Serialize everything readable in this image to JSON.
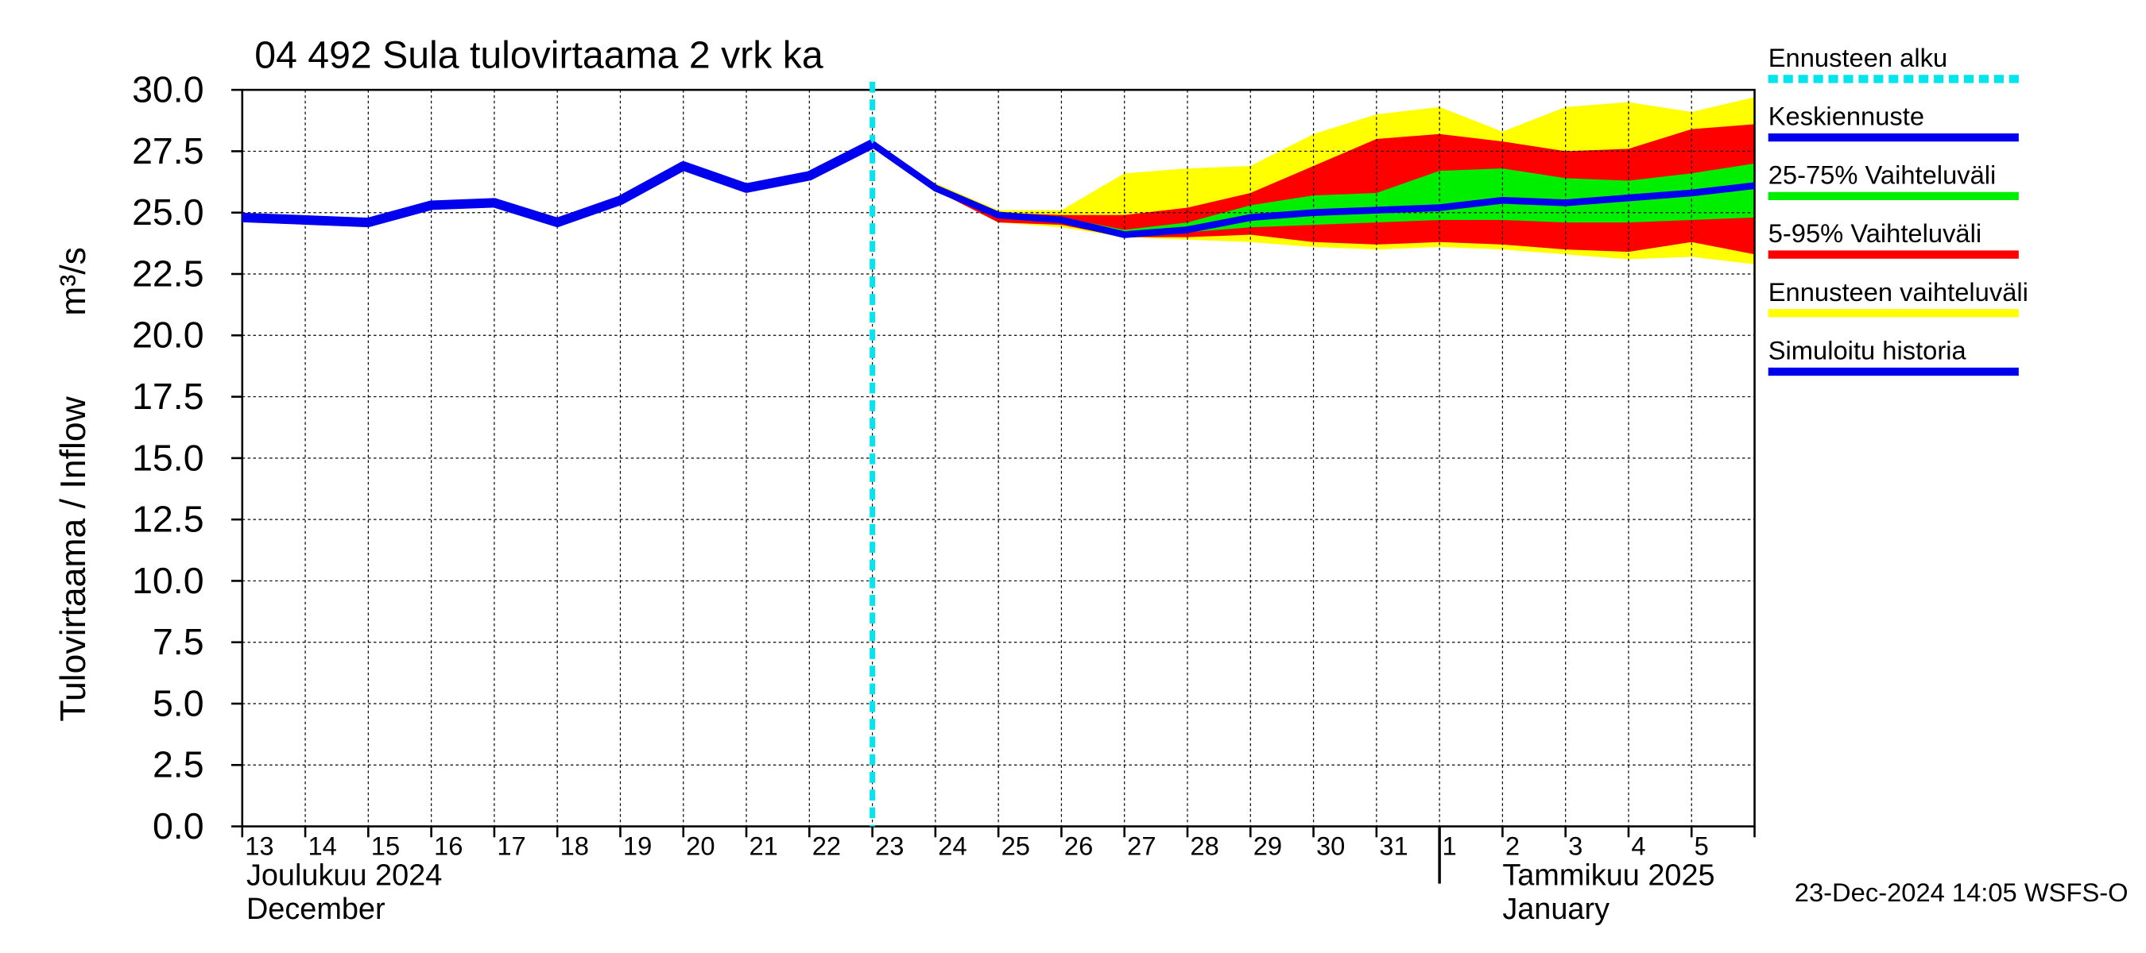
{
  "chart_data": {
    "type": "line",
    "title": "04 492 Sula tulovirtaama 2 vrk ka",
    "y_label": "Tulovirtaama / Inflow",
    "y_unit": "m³/s",
    "categories": [
      "13",
      "14",
      "15",
      "16",
      "17",
      "18",
      "19",
      "20",
      "21",
      "22",
      "23",
      "24",
      "25",
      "26",
      "27",
      "28",
      "29",
      "30",
      "31",
      "1",
      "2",
      "3",
      "4",
      "5",
      null
    ],
    "month_labels": [
      {
        "category": "13",
        "lines": [
          "Joulukuu  2024",
          "December"
        ]
      },
      {
        "category": "1",
        "lines": [
          "Tammikuu  2025",
          "January"
        ]
      }
    ],
    "timestamp": "23-Dec-2024 14:05 WSFS-O",
    "ylim": [
      0,
      30
    ],
    "yticks": [
      {
        "value": 0,
        "label": "0.0"
      },
      {
        "value": 2.5,
        "label": "2.5"
      },
      {
        "value": 5,
        "label": "5.0"
      },
      {
        "value": 7.5,
        "label": "7.5"
      },
      {
        "value": 10,
        "label": "10.0"
      },
      {
        "value": 12.5,
        "label": "12.5"
      },
      {
        "value": 15,
        "label": "15.0"
      },
      {
        "value": 17.5,
        "label": "17.5"
      },
      {
        "value": 20,
        "label": "20.0"
      },
      {
        "value": 22.5,
        "label": "22.5"
      },
      {
        "value": 25,
        "label": "25.0"
      },
      {
        "value": 27.5,
        "label": "27.5"
      },
      {
        "value": 30,
        "label": "30.0"
      }
    ],
    "grid": true,
    "forecast_start": {
      "name": "Ennusteen alku",
      "color": "#00e5ee",
      "category": "23"
    },
    "bands": [
      {
        "name": "Ennusteen vaihteluväli",
        "color": "#ffff00",
        "low": [
          null,
          null,
          null,
          null,
          null,
          null,
          null,
          null,
          null,
          null,
          27.8,
          25.9,
          24.6,
          24.4,
          24.0,
          23.9,
          23.8,
          23.6,
          23.5,
          23.6,
          23.5,
          23.3,
          23.1,
          23.2,
          22.9
        ],
        "high": [
          null,
          null,
          null,
          null,
          null,
          null,
          null,
          null,
          null,
          null,
          27.8,
          26.2,
          25.1,
          25.1,
          26.6,
          26.8,
          26.9,
          28.2,
          29.0,
          29.3,
          28.3,
          29.3,
          29.5,
          29.1,
          29.7
        ]
      },
      {
        "name": "5-95% Vaihteluväli",
        "color": "#ff0000",
        "low": [
          null,
          null,
          null,
          null,
          null,
          null,
          null,
          null,
          null,
          null,
          27.8,
          25.9,
          24.6,
          24.5,
          24.0,
          24.0,
          24.1,
          23.8,
          23.7,
          23.8,
          23.7,
          23.5,
          23.4,
          23.8,
          23.3
        ],
        "high": [
          null,
          null,
          null,
          null,
          null,
          null,
          null,
          null,
          null,
          null,
          27.8,
          26.1,
          25.0,
          24.9,
          24.9,
          25.2,
          25.8,
          26.9,
          28.0,
          28.2,
          27.9,
          27.5,
          27.6,
          28.4,
          28.6
        ]
      },
      {
        "name": "25-75% Vaihteluväli",
        "color": "#00ee00",
        "low": [
          null,
          null,
          null,
          null,
          null,
          null,
          null,
          null,
          null,
          null,
          27.8,
          26.0,
          24.8,
          24.6,
          24.1,
          24.2,
          24.4,
          24.5,
          24.6,
          24.7,
          24.7,
          24.6,
          24.6,
          24.7,
          24.8
        ],
        "high": [
          null,
          null,
          null,
          null,
          null,
          null,
          null,
          null,
          null,
          null,
          27.8,
          26.0,
          24.9,
          24.8,
          24.3,
          24.6,
          25.3,
          25.7,
          25.8,
          26.7,
          26.8,
          26.4,
          26.3,
          26.6,
          27.0
        ]
      }
    ],
    "series": [
      {
        "name": "Keskiennuste",
        "color": "#0000ee",
        "values": [
          null,
          null,
          null,
          null,
          null,
          null,
          null,
          null,
          null,
          null,
          27.8,
          26.0,
          24.9,
          24.7,
          24.1,
          24.3,
          24.8,
          25.0,
          25.1,
          25.2,
          25.5,
          25.4,
          25.6,
          25.8,
          26.1
        ]
      },
      {
        "name": "Simuloitu historia",
        "color": "#0000ee",
        "values": [
          24.8,
          24.7,
          24.6,
          25.3,
          25.4,
          24.6,
          25.5,
          26.9,
          26.0,
          26.5,
          27.8,
          null,
          null,
          null,
          null,
          null,
          null,
          null,
          null,
          null,
          null,
          null,
          null,
          null,
          null
        ]
      }
    ],
    "legend": [
      "forecast_start",
      "series.0",
      "bands.2",
      "bands.1",
      "bands.0",
      "series.1"
    ]
  }
}
